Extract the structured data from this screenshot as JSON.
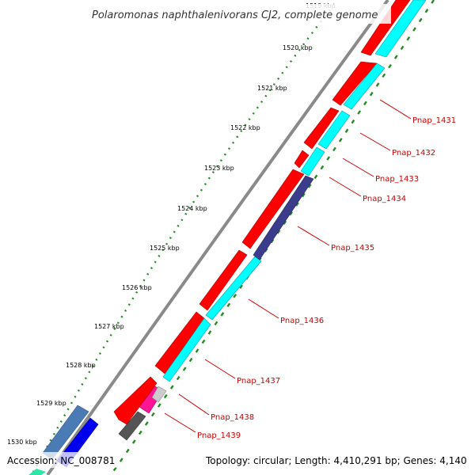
{
  "title": "Polaromonas naphthalenivorans CJ2, complete genome",
  "ticks": [
    "1519 kbp",
    "1520 kbp",
    "1521 kbp",
    "1522 kbp",
    "1523 kbp",
    "1524 kbp",
    "1525 kbp",
    "1526 kbp",
    "1527 kbp",
    "1528 kbp",
    "1529 kbp",
    "1530 kbp"
  ],
  "genes": [
    "Pnap_1431",
    "Pnap_1432",
    "Pnap_1433",
    "Pnap_1434",
    "Pnap_1435",
    "Pnap_1436",
    "Pnap_1437",
    "Pnap_1438",
    "Pnap_1439"
  ],
  "footer": {
    "accession": "Accession: NC_008781",
    "summary": "Topology: circular; Length: 4,410,291 bp; Genes: 4,140"
  },
  "colors": {
    "backbone": "#808080",
    "forward_cds": "#ff0000",
    "reverse_cds": "#00ffff",
    "other_feature": "#3c3c8c",
    "rrna": "#ff3399",
    "misc": "#666666",
    "tick_mark": "#2e8b2e",
    "label": "#cc0000"
  }
}
